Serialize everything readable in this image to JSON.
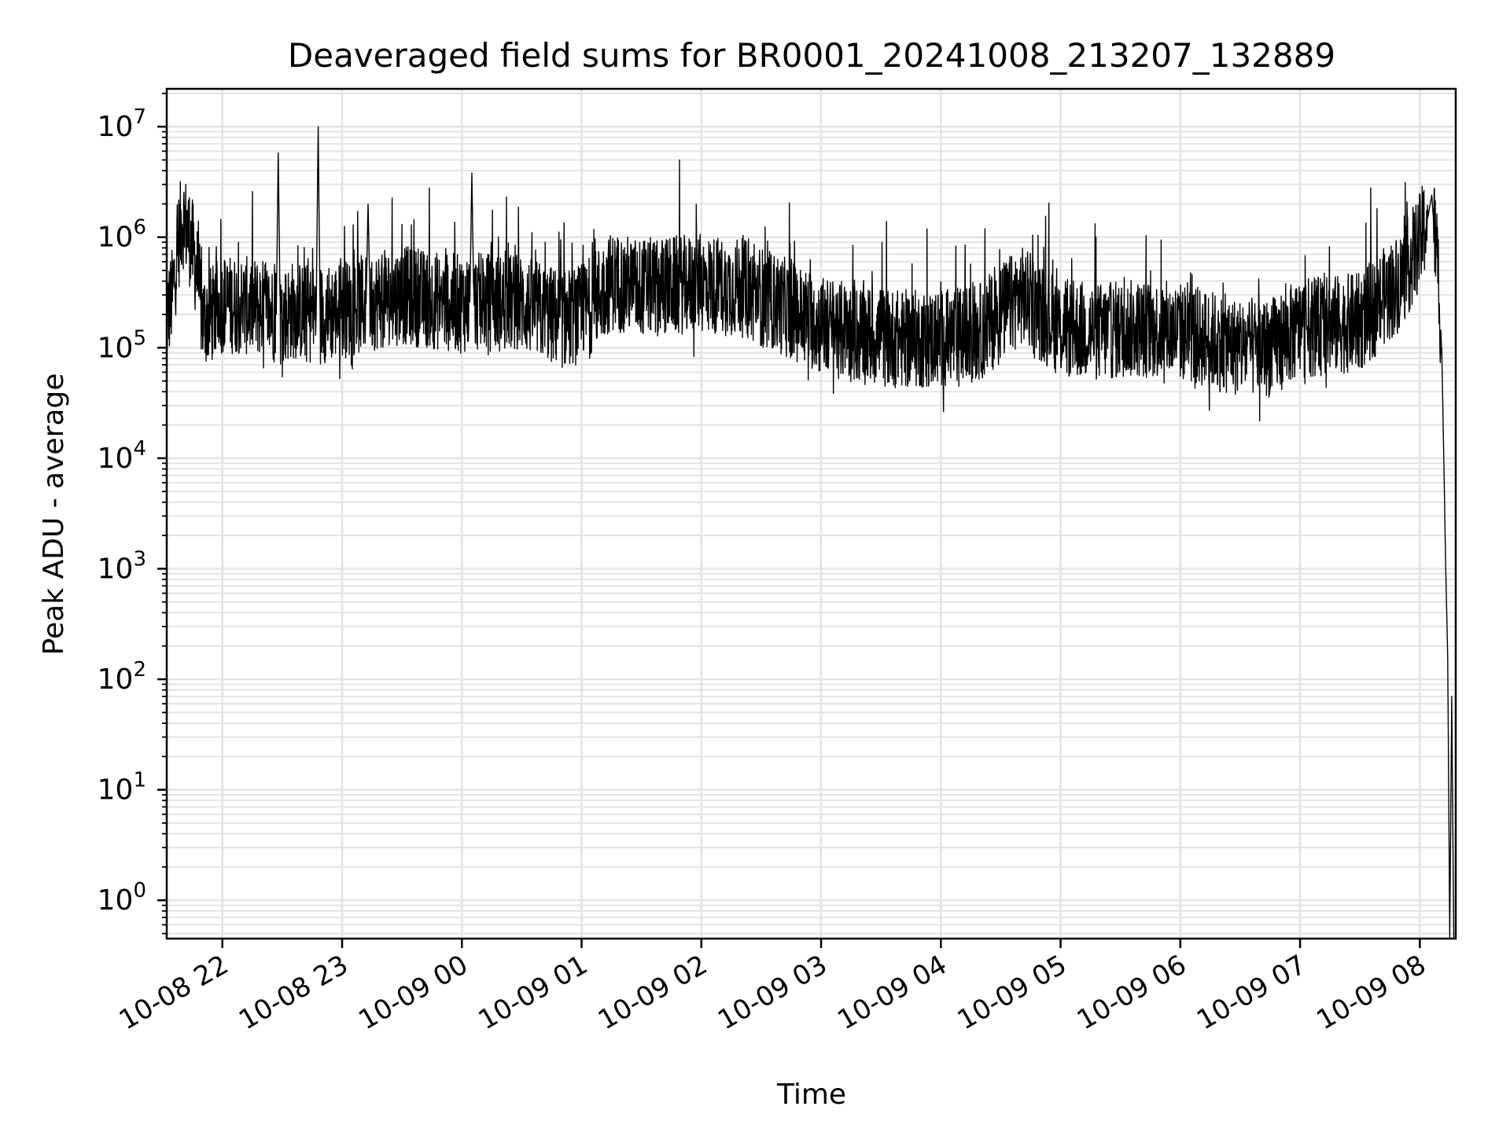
{
  "chart_data": {
    "type": "line",
    "title": "Deaveraged field sums for BR0001_20241008_213207_132889",
    "xlabel": "Time",
    "ylabel": "Peak ADU - average",
    "y_scale": "log",
    "ylim": [
      0.45,
      22000000
    ],
    "xlim": [
      "2024-10-08 21:32:07",
      "2024-10-09 08:18:00"
    ],
    "grid": "major and minor",
    "line_color": "#000000",
    "grid_color": "#e3e3e3",
    "x_ticks": [
      {
        "t": "2024-10-08 22:00",
        "label": "10-08 22"
      },
      {
        "t": "2024-10-08 23:00",
        "label": "10-08 23"
      },
      {
        "t": "2024-10-09 00:00",
        "label": "10-09 00"
      },
      {
        "t": "2024-10-09 01:00",
        "label": "10-09 01"
      },
      {
        "t": "2024-10-09 02:00",
        "label": "10-09 02"
      },
      {
        "t": "2024-10-09 03:00",
        "label": "10-09 03"
      },
      {
        "t": "2024-10-09 04:00",
        "label": "10-09 04"
      },
      {
        "t": "2024-10-09 05:00",
        "label": "10-09 05"
      },
      {
        "t": "2024-10-09 06:00",
        "label": "10-09 06"
      },
      {
        "t": "2024-10-09 07:00",
        "label": "10-09 07"
      },
      {
        "t": "2024-10-09 08:00",
        "label": "10-09 08"
      }
    ],
    "y_ticks": [
      {
        "value": 1,
        "base": "10",
        "exp": "0"
      },
      {
        "value": 10,
        "base": "10",
        "exp": "1"
      },
      {
        "value": 100,
        "base": "10",
        "exp": "2"
      },
      {
        "value": 1000,
        "base": "10",
        "exp": "3"
      },
      {
        "value": 10000,
        "base": "10",
        "exp": "4"
      },
      {
        "value": 100000,
        "base": "10",
        "exp": "5"
      },
      {
        "value": 1000000,
        "base": "10",
        "exp": "6"
      },
      {
        "value": 10000000,
        "base": "10",
        "exp": "7"
      }
    ],
    "series": [
      {
        "points": [
          [
            "2024-10-08 21:32",
            180000
          ],
          [
            "2024-10-08 21:35",
            300000
          ],
          [
            "2024-10-08 21:38",
            900000
          ],
          [
            "2024-10-08 21:40",
            1500000
          ],
          [
            "2024-10-08 21:43",
            1100000
          ],
          [
            "2024-10-08 21:45",
            800000
          ],
          [
            "2024-10-08 21:48",
            400000
          ],
          [
            "2024-10-08 21:50",
            180000
          ],
          [
            "2024-10-08 21:55",
            200000
          ],
          [
            "2024-10-08 22:00",
            250000
          ],
          [
            "2024-10-08 22:10",
            240000
          ],
          [
            "2024-10-08 22:20",
            230000
          ],
          [
            "2024-10-08 22:27",
            200000
          ],
          [
            "2024-10-08 22:28",
            5800000
          ],
          [
            "2024-10-08 22:29",
            180000
          ],
          [
            "2024-10-08 22:35",
            220000
          ],
          [
            "2024-10-08 22:47",
            200000
          ],
          [
            "2024-10-08 22:48",
            10000000
          ],
          [
            "2024-10-08 22:49",
            200000
          ],
          [
            "2024-10-08 23:00",
            220000
          ],
          [
            "2024-10-08 23:12",
            250000
          ],
          [
            "2024-10-08 23:13",
            2000000
          ],
          [
            "2024-10-08 23:14",
            260000
          ],
          [
            "2024-10-08 23:30",
            300000
          ],
          [
            "2024-10-08 23:50",
            260000
          ],
          [
            "2024-10-09 00:00",
            250000
          ],
          [
            "2024-10-09 00:04",
            260000
          ],
          [
            "2024-10-09 00:05",
            3800000
          ],
          [
            "2024-10-09 00:06",
            260000
          ],
          [
            "2024-10-09 00:30",
            250000
          ],
          [
            "2024-10-09 00:50",
            180000
          ],
          [
            "2024-10-09 01:00",
            200000
          ],
          [
            "2024-10-09 01:15",
            400000
          ],
          [
            "2024-10-09 01:30",
            350000
          ],
          [
            "2024-10-09 02:00",
            380000
          ],
          [
            "2024-10-09 02:20",
            350000
          ],
          [
            "2024-10-09 02:45",
            220000
          ],
          [
            "2024-10-09 03:00",
            160000
          ],
          [
            "2024-10-09 03:20",
            130000
          ],
          [
            "2024-10-09 03:40",
            120000
          ],
          [
            "2024-10-09 04:00",
            120000
          ],
          [
            "2024-10-09 04:20",
            140000
          ],
          [
            "2024-10-09 04:40",
            300000
          ],
          [
            "2024-10-09 05:00",
            150000
          ],
          [
            "2024-10-09 05:20",
            140000
          ],
          [
            "2024-10-09 05:40",
            150000
          ],
          [
            "2024-10-09 06:00",
            140000
          ],
          [
            "2024-10-09 06:30",
            100000
          ],
          [
            "2024-10-09 06:45",
            100000
          ],
          [
            "2024-10-09 07:00",
            150000
          ],
          [
            "2024-10-09 07:30",
            170000
          ],
          [
            "2024-10-09 07:50",
            400000
          ],
          [
            "2024-10-09 08:00",
            900000
          ],
          [
            "2024-10-09 08:04",
            1500000
          ],
          [
            "2024-10-09 08:06",
            2400000
          ],
          [
            "2024-10-09 08:07",
            1300000
          ],
          [
            "2024-10-09 08:09",
            600000
          ],
          [
            "2024-10-09 08:11",
            100000
          ],
          [
            "2024-10-09 08:13",
            1000
          ],
          [
            "2024-10-09 08:14",
            150
          ],
          [
            "2024-10-09 08:15",
            0.45
          ],
          [
            "2024-10-09 08:16",
            70
          ],
          [
            "2024-10-09 08:17",
            0.45
          ]
        ]
      }
    ]
  }
}
